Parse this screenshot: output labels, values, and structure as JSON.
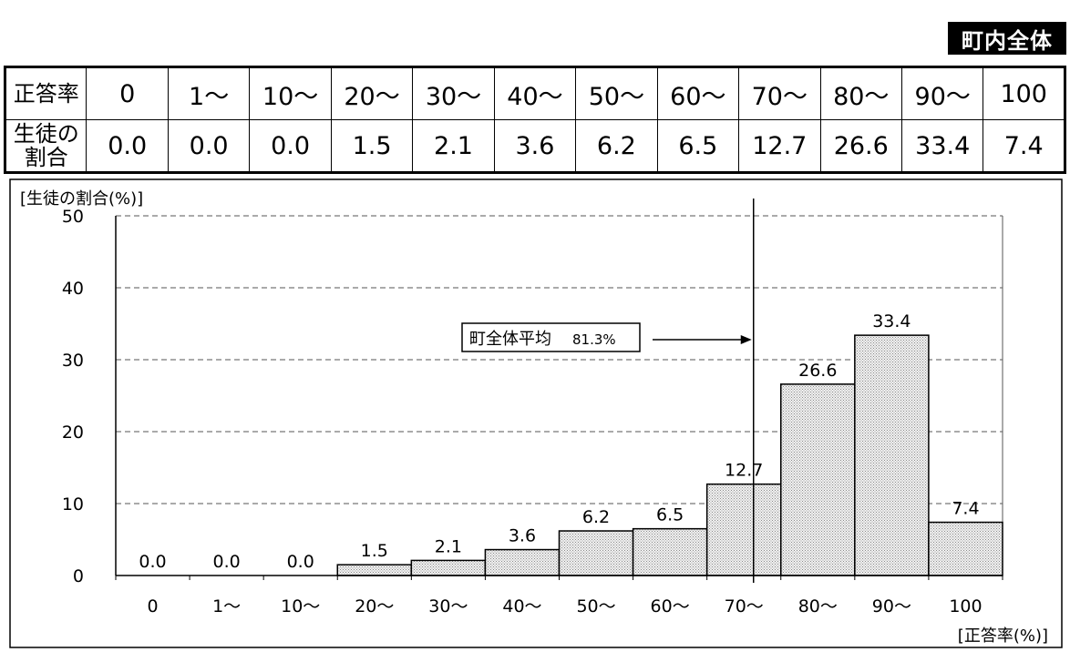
{
  "badge": "町内全体",
  "table": {
    "row1_header": "正答率",
    "row2_header": "生徒の割合",
    "row2_header_lines": [
      "生徒の",
      "割合"
    ],
    "columns": [
      "0",
      "1〜",
      "10〜",
      "20〜",
      "30〜",
      "40〜",
      "50〜",
      "60〜",
      "70〜",
      "80〜",
      "90〜",
      "100"
    ],
    "values": [
      "0.0",
      "0.0",
      "0.0",
      "1.5",
      "2.1",
      "3.6",
      "6.2",
      "6.5",
      "12.7",
      "26.6",
      "33.4",
      "7.4"
    ]
  },
  "chart_data": {
    "type": "bar",
    "categories": [
      "0",
      "1〜",
      "10〜",
      "20〜",
      "30〜",
      "40〜",
      "50〜",
      "60〜",
      "70〜",
      "80〜",
      "90〜",
      "100"
    ],
    "values": [
      0.0,
      0.0,
      0.0,
      1.5,
      2.1,
      3.6,
      6.2,
      6.5,
      12.7,
      26.6,
      33.4,
      7.4
    ],
    "data_labels": [
      "0.0",
      "0.0",
      "0.0",
      "1.5",
      "2.1",
      "3.6",
      "6.2",
      "6.5",
      "12.7",
      "26.6",
      "33.4",
      "7.4"
    ],
    "ylabel": "[生徒の割合(%)]",
    "xlabel": "[正答率(%)]",
    "ylim": [
      0,
      50
    ],
    "yticks": [
      0,
      10,
      20,
      30,
      40,
      50
    ],
    "grid": "dashed horizontal",
    "bar_pattern": "dotted",
    "mean_line": {
      "value": 81.3,
      "label": "町全体平均",
      "value_label": "81.3%"
    }
  }
}
